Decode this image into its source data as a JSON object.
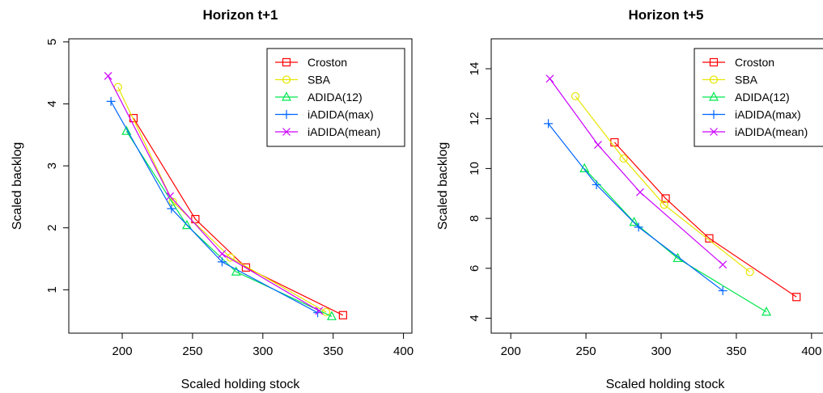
{
  "chart_data": [
    {
      "type": "line",
      "title": "Horizon t+1",
      "xlabel": "Scaled holding stock",
      "ylabel": "Scaled backlog",
      "xlim": [
        162,
        406
      ],
      "ylim": [
        0.3,
        5.05
      ],
      "xticks": [
        200,
        250,
        300,
        350,
        400
      ],
      "yticks": [
        1,
        2,
        3,
        4,
        5
      ],
      "grid": false,
      "legend_position": "top-right",
      "series": [
        {
          "name": "Croston",
          "color": "#ff0000",
          "marker": "square",
          "x": [
            208,
            252,
            288,
            357
          ],
          "y": [
            3.77,
            2.14,
            1.36,
            0.59
          ]
        },
        {
          "name": "SBA",
          "color": "#e6e600",
          "marker": "circle",
          "x": [
            197,
            236,
            277,
            345
          ],
          "y": [
            4.27,
            2.42,
            1.52,
            0.64
          ]
        },
        {
          "name": "ADIDA(12)",
          "color": "#00e64d",
          "marker": "triangle",
          "x": [
            203,
            246,
            281,
            349
          ],
          "y": [
            3.56,
            2.04,
            1.29,
            0.57
          ]
        },
        {
          "name": "iADIDA(max)",
          "color": "#0066ff",
          "marker": "plus",
          "x": [
            192,
            235,
            271,
            339
          ],
          "y": [
            4.04,
            2.31,
            1.45,
            0.63
          ]
        },
        {
          "name": "iADIDA(mean)",
          "color": "#cc00ff",
          "marker": "x",
          "x": [
            190,
            234,
            271,
            340
          ],
          "y": [
            4.45,
            2.51,
            1.58,
            0.66
          ]
        }
      ]
    },
    {
      "type": "line",
      "title": "Horizon t+5",
      "xlabel": "Scaled holding stock",
      "ylabel": "Scaled backlog",
      "xlim": [
        187,
        420
      ],
      "ylim": [
        3.4,
        15.2
      ],
      "xticks": [
        200,
        250,
        300,
        350,
        400
      ],
      "yticks": [
        4,
        6,
        8,
        10,
        12,
        14
      ],
      "grid": false,
      "legend_position": "top-right",
      "series": [
        {
          "name": "Croston",
          "color": "#ff0000",
          "marker": "square",
          "x": [
            269,
            303,
            332,
            390
          ],
          "y": [
            11.05,
            8.8,
            7.2,
            4.85
          ]
        },
        {
          "name": "SBA",
          "color": "#e6e600",
          "marker": "circle",
          "x": [
            243,
            275,
            302,
            359
          ],
          "y": [
            12.9,
            10.4,
            8.55,
            5.85
          ]
        },
        {
          "name": "ADIDA(12)",
          "color": "#00e64d",
          "marker": "triangle",
          "x": [
            249,
            282,
            311,
            370
          ],
          "y": [
            10.0,
            7.85,
            6.4,
            4.25
          ]
        },
        {
          "name": "iADIDA(max)",
          "color": "#0066ff",
          "marker": "plus",
          "x": [
            225,
            257,
            285,
            341
          ],
          "y": [
            11.8,
            9.35,
            7.65,
            5.1
          ]
        },
        {
          "name": "iADIDA(mean)",
          "color": "#cc00ff",
          "marker": "x",
          "x": [
            226,
            258,
            286,
            341
          ],
          "y": [
            13.6,
            10.95,
            9.05,
            6.15
          ]
        }
      ]
    }
  ]
}
